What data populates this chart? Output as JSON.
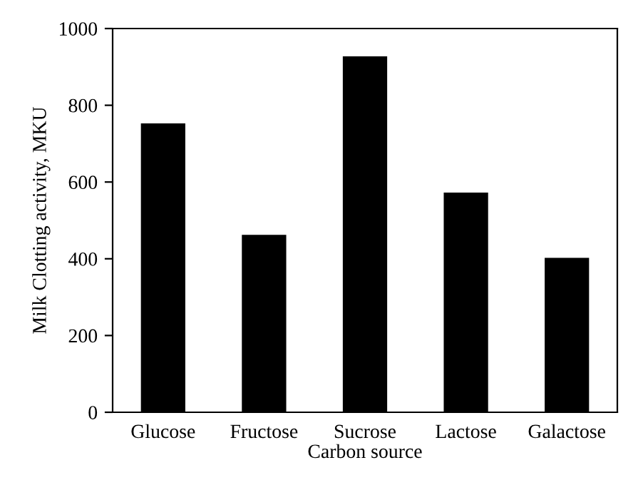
{
  "chart_data": {
    "type": "bar",
    "xlabel": "Carbon source",
    "ylabel": "Milk Clotting activity, MKU",
    "categories": [
      "Glucose",
      "Fructose",
      "Sucrose",
      "Lactose",
      "Galactose"
    ],
    "values": [
      750,
      460,
      925,
      570,
      400
    ],
    "color": "#000000",
    "ylim": [
      0,
      1000
    ],
    "yticks": [
      0,
      200,
      400,
      600,
      800,
      1000
    ],
    "grid": false,
    "legend": false
  }
}
